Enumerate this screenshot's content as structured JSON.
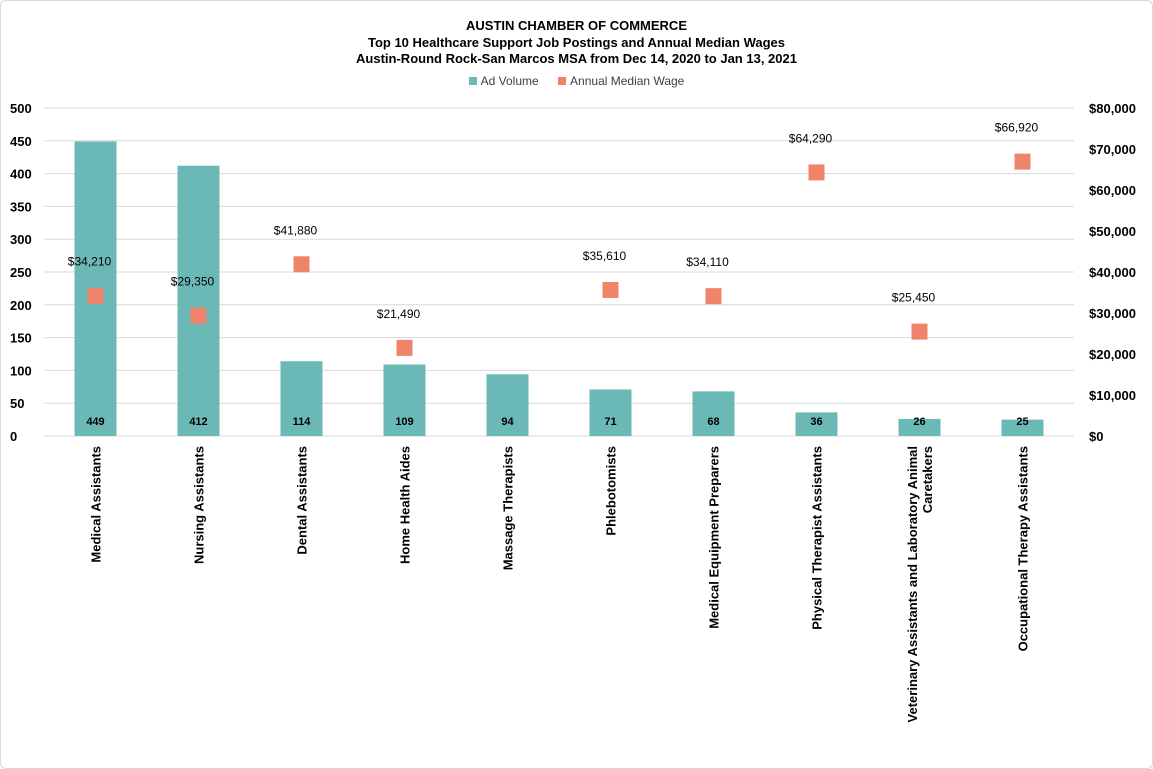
{
  "chart_data": {
    "type": "bar",
    "title": "AUSTIN CHAMBER OF COMMERCE",
    "subtitle_1": "Top 10 Healthcare Support Job Postings and Annual  Median Wages",
    "subtitle_2": "Austin-Round Rock-San Marcos MSA from Dec 14, 2020 to Jan 13, 2021",
    "legend_position": "top",
    "grid": true,
    "categories": [
      [
        "Medical Assistants"
      ],
      [
        "Nursing Assistants"
      ],
      [
        "Dental Assistants"
      ],
      [
        "Home Health Aides"
      ],
      [
        "Massage Therapists"
      ],
      [
        "Phlebotomists"
      ],
      [
        "Medical Equipment Preparers"
      ],
      [
        "Physical Therapist Assistants"
      ],
      [
        "Veterinary Assistants and Laboratory Animal",
        "Caretakers"
      ],
      [
        "Occupational Therapy Assistants"
      ]
    ],
    "series": [
      {
        "name": "Ad Volume",
        "type": "bar",
        "axis": "left",
        "color": "#6bb9b7",
        "values": [
          449,
          412,
          114,
          109,
          94,
          71,
          68,
          36,
          26,
          25
        ],
        "labels": [
          "449",
          "412",
          "114",
          "109",
          "94",
          "71",
          "68",
          "36",
          "26",
          "25"
        ]
      },
      {
        "name": "Annual Median Wage",
        "type": "scatter",
        "axis": "right",
        "color": "#f0846a",
        "values": [
          34210,
          29350,
          41880,
          21490,
          null,
          35610,
          34110,
          64290,
          25450,
          66920
        ],
        "labels": [
          "$34,210",
          "$29,350",
          "$41,880",
          "$21,490",
          "",
          "$35,610",
          "$34,110",
          "$64,290",
          "$25,450",
          "$66,920"
        ]
      }
    ],
    "y_left": {
      "range": [
        0,
        500
      ],
      "ticks": [
        0,
        50,
        100,
        150,
        200,
        250,
        300,
        350,
        400,
        450,
        500
      ],
      "tick_labels": [
        "0",
        "50",
        "100",
        "150",
        "200",
        "250",
        "300",
        "350",
        "400",
        "450",
        "500"
      ]
    },
    "y_right": {
      "range": [
        0,
        80000
      ],
      "ticks": [
        0,
        10000,
        20000,
        30000,
        40000,
        50000,
        60000,
        70000,
        80000
      ],
      "tick_labels": [
        "$0",
        "$10,000",
        "$20,000",
        "$30,000",
        "$40,000",
        "$50,000",
        "$60,000",
        "$70,000",
        "$80,000"
      ]
    }
  }
}
